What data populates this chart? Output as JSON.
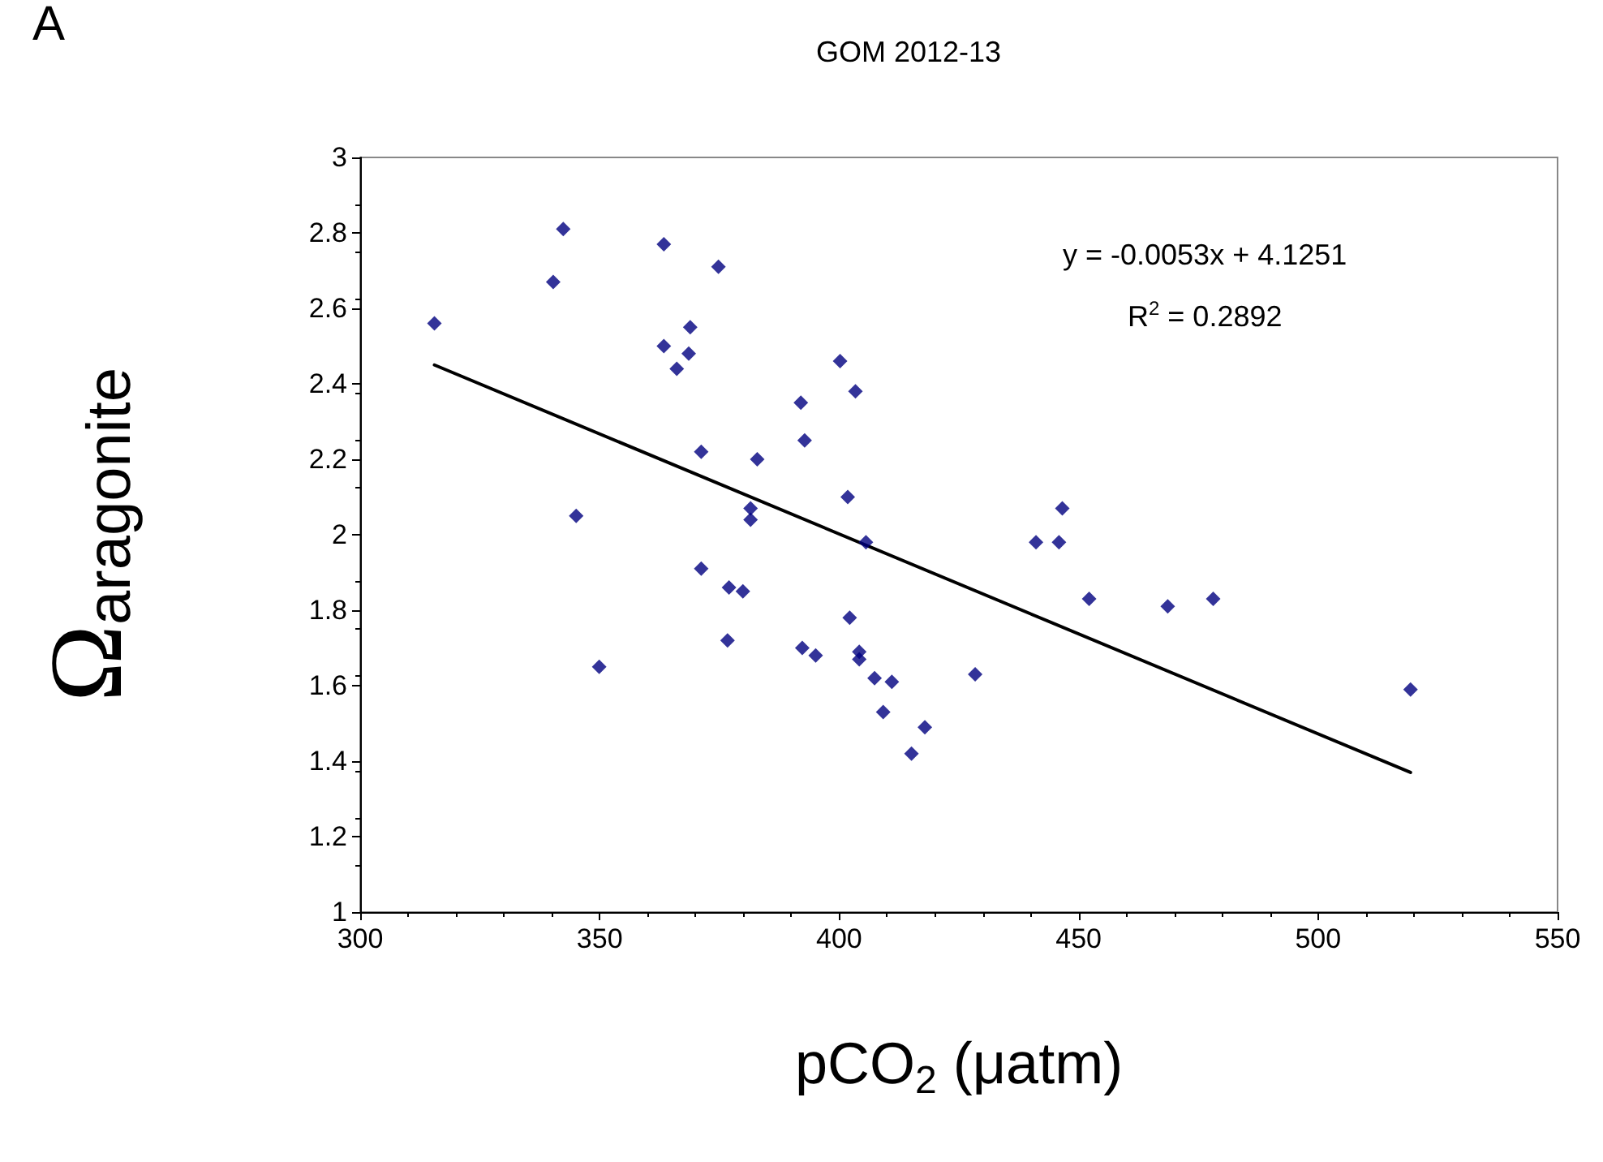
{
  "chart_data": {
    "type": "scatter",
    "title": "GOM 2012-13",
    "xlabel": "pCO$_{2}$ (μatm)",
    "ylabel": "Ω$_{aragonite}$",
    "annotations": [
      "A",
      "y = -0.0053x + 4.1251",
      "R$^{2}$ = 0.2892"
    ],
    "xlim": [
      300,
      550
    ],
    "xticks": [
      300,
      350,
      400,
      450,
      500,
      550
    ],
    "ylim": [
      1,
      3
    ],
    "yticks": [
      1,
      1.2,
      1.4,
      1.6,
      1.8,
      2,
      2.2,
      2.4,
      2.6,
      2.8,
      3
    ],
    "grid": false,
    "marker": "diamond",
    "series": [
      {
        "color": "#000080",
        "x": [
          315.5,
          340.3,
          342.4,
          363.4,
          374.8,
          368.9,
          363.4,
          368.6,
          366.1,
          392.0,
          392.8,
          371.2,
          382.9,
          381.5,
          381.5,
          345.1,
          400.2,
          403.4,
          401.8,
          405.6,
          446.6,
          441.1,
          445.9,
          371.2,
          377.0,
          379.9,
          452.2,
          468.6,
          478.1,
          402.2,
          376.7,
          392.3,
          395.1,
          404.2,
          404.2,
          407.4,
          411.0,
          428.4,
          409.2,
          417.9,
          415.1,
          519.3,
          349.9
        ],
        "values": [
          2.56,
          2.67,
          2.81,
          2.77,
          2.71,
          2.55,
          2.5,
          2.48,
          2.44,
          2.35,
          2.25,
          2.22,
          2.2,
          2.07,
          2.04,
          2.05,
          2.46,
          2.38,
          2.1,
          1.98,
          2.07,
          1.98,
          1.98,
          1.91,
          1.86,
          1.85,
          1.83,
          1.81,
          1.83,
          1.78,
          1.72,
          1.7,
          1.68,
          1.69,
          1.67,
          1.62,
          1.61,
          1.63,
          1.53,
          1.49,
          1.42,
          1.59,
          1.65
        ]
      },
      {
        "type": "line",
        "color": "#000000",
        "x": [
          315.5,
          519.3
        ],
        "values": [
          2.45,
          1.37
        ],
        "marker": "none",
        "line_style": "solid"
      }
    ]
  }
}
